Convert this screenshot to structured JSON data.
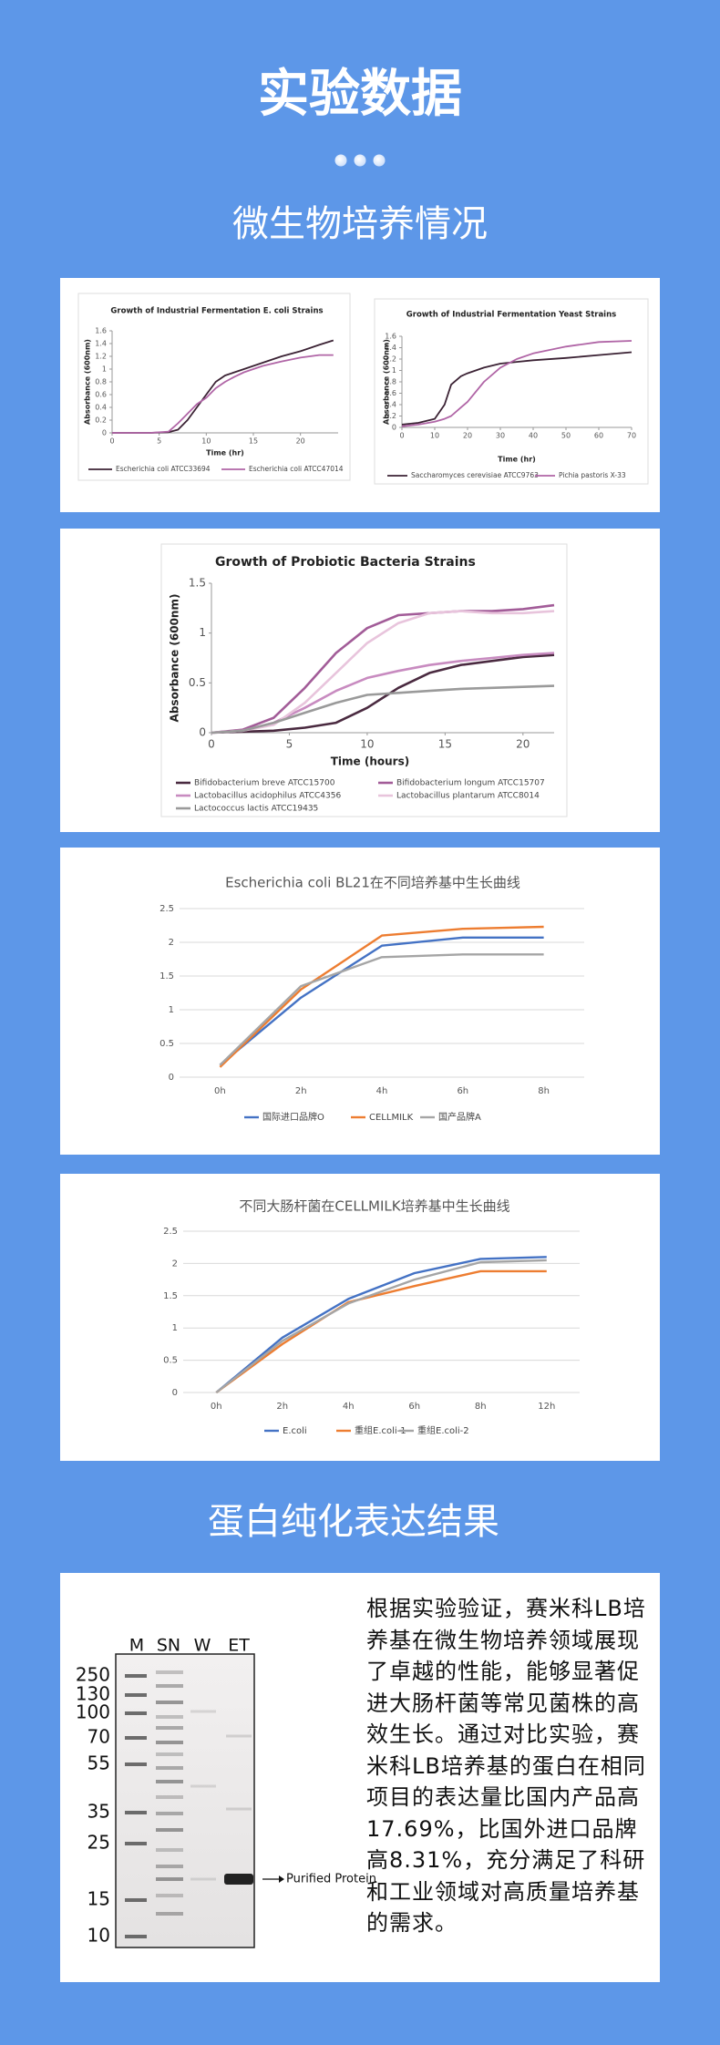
{
  "page": {
    "title": "实验数据",
    "section_1": "微生物培养情况",
    "section_2": "蛋白纯化表达结果",
    "paragraph": "根据实验验证，赛米科LB培养基在微生物培养领域展现了卓越的性能，能够显著促进大肠杆菌等常见菌株的高效生长。通过对比实验，赛米科LB培养基的蛋白在相同项目的表达量比国内产品高17.69%，比国外进口品牌高8.31%，充分满足了科研和工业领域对高质量培养基的需求。"
  },
  "chart_data": [
    {
      "type": "line",
      "title": "Growth of Industrial Fermentation E. coli Strains",
      "x_label": "Time (hr)",
      "y_label": "Absorbance (600nm)",
      "x": [
        0,
        2,
        4,
        6,
        7,
        8,
        9,
        10,
        11,
        12,
        13,
        14,
        16,
        18,
        20,
        22,
        23.5
      ],
      "series": [
        {
          "name": "Escherichia coli ATCC33694",
          "color": "#3b2234",
          "values": [
            0,
            0,
            0,
            0.01,
            0.05,
            0.2,
            0.4,
            0.6,
            0.8,
            0.9,
            0.95,
            1.0,
            1.1,
            1.2,
            1.28,
            1.38,
            1.45
          ]
        },
        {
          "name": "Escherichia coli ATCC47014",
          "color": "#b065a6",
          "values": [
            0,
            0,
            0,
            0.02,
            0.15,
            0.3,
            0.45,
            0.55,
            0.7,
            0.8,
            0.88,
            0.95,
            1.05,
            1.12,
            1.18,
            1.22,
            1.22
          ]
        }
      ],
      "xlim": [
        0,
        24
      ],
      "xticks": [
        0,
        5,
        10,
        15,
        20
      ],
      "ylim": [
        0,
        1.6
      ],
      "yticks": [
        0,
        0.2,
        0.4,
        0.6,
        0.8,
        1,
        1.2,
        1.4,
        1.6
      ],
      "grid": false
    },
    {
      "type": "line",
      "title": "Growth of Industrial Fermentation Yeast Strains",
      "x_label": "Time (hr)",
      "y_label": "Absorbance (600nm)",
      "x": [
        0,
        5,
        10,
        13,
        15,
        18,
        20,
        25,
        30,
        35,
        40,
        50,
        60,
        70
      ],
      "series": [
        {
          "name": "Saccharomyces cerevisiae ATCC9763",
          "color": "#3b2234",
          "values": [
            0.05,
            0.08,
            0.15,
            0.4,
            0.75,
            0.9,
            0.95,
            1.05,
            1.12,
            1.15,
            1.18,
            1.22,
            1.27,
            1.32
          ]
        },
        {
          "name": "Pichia pastoris X-33",
          "color": "#b065a6",
          "values": [
            0.02,
            0.05,
            0.1,
            0.15,
            0.2,
            0.35,
            0.45,
            0.8,
            1.05,
            1.2,
            1.3,
            1.42,
            1.5,
            1.52
          ]
        }
      ],
      "xlim": [
        0,
        70
      ],
      "xticks": [
        0,
        10,
        20,
        30,
        40,
        50,
        60,
        70
      ],
      "ylim": [
        0,
        1.6
      ],
      "yticks": [
        0,
        0.2,
        0.4,
        0.6,
        0.8,
        1,
        1.2,
        1.4,
        1.6
      ],
      "grid": false
    },
    {
      "type": "line",
      "title": "Growth of Probiotic Bacteria Strains",
      "x_label": "Time (hours)",
      "y_label": "Absorbance (600nm)",
      "x": [
        0,
        2,
        4,
        6,
        8,
        10,
        12,
        14,
        16,
        18,
        20,
        22
      ],
      "series": [
        {
          "name": "Bifidobacterium breve ATCC15700",
          "color": "#4a2a40",
          "values": [
            0,
            0.01,
            0.02,
            0.05,
            0.1,
            0.25,
            0.45,
            0.6,
            0.68,
            0.72,
            0.76,
            0.78
          ]
        },
        {
          "name": "Bifidobacterium longum ATCC15707",
          "color": "#a25c98",
          "values": [
            0,
            0.03,
            0.15,
            0.45,
            0.8,
            1.05,
            1.18,
            1.2,
            1.22,
            1.22,
            1.24,
            1.28
          ]
        },
        {
          "name": "Lactobacillus acidophilus ATCC4356",
          "color": "#c88bc0",
          "values": [
            0,
            0.02,
            0.1,
            0.25,
            0.42,
            0.55,
            0.62,
            0.68,
            0.72,
            0.75,
            0.78,
            0.8
          ]
        },
        {
          "name": "Lactobacillus plantarum ATCC8014",
          "color": "#e8c4dc",
          "values": [
            0,
            0.02,
            0.08,
            0.3,
            0.6,
            0.9,
            1.1,
            1.2,
            1.22,
            1.2,
            1.2,
            1.22
          ]
        },
        {
          "name": "Lactococcus lactis ATCC19435",
          "color": "#9a9a9a",
          "values": [
            0,
            0.02,
            0.1,
            0.2,
            0.3,
            0.38,
            0.4,
            0.42,
            0.44,
            0.45,
            0.46,
            0.47
          ]
        }
      ],
      "xlim": [
        0,
        22
      ],
      "xticks": [
        0,
        5,
        10,
        15,
        20
      ],
      "ylim": [
        0,
        1.5
      ],
      "yticks": [
        0,
        0.5,
        1,
        1.5
      ],
      "grid": false
    },
    {
      "type": "line",
      "title": "Escherichia coli BL21在不同培养基中生长曲线",
      "categories": [
        "0h",
        "2h",
        "4h",
        "6h",
        "8h"
      ],
      "series": [
        {
          "name": "国际进口品牌O",
          "color": "#4472c4",
          "values": [
            0.18,
            1.18,
            1.95,
            2.07,
            2.07
          ]
        },
        {
          "name": "CELLMILK",
          "color": "#ed7d31",
          "values": [
            0.15,
            1.3,
            2.1,
            2.2,
            2.23
          ]
        },
        {
          "name": "国产品牌A",
          "color": "#a5a5a5",
          "values": [
            0.18,
            1.35,
            1.78,
            1.82,
            1.82
          ]
        }
      ],
      "ylim": [
        0,
        2.5
      ],
      "yticks": [
        0,
        0.5,
        1,
        1.5,
        2,
        2.5
      ],
      "grid": true
    },
    {
      "type": "line",
      "title": "不同大肠杆菌在CELLMILK培养基中生长曲线",
      "categories": [
        "0h",
        "2h",
        "4h",
        "6h",
        "8h",
        "12h"
      ],
      "series": [
        {
          "name": "E.coli",
          "color": "#4472c4",
          "values": [
            0,
            0.85,
            1.45,
            1.85,
            2.07,
            2.1
          ]
        },
        {
          "name": "重组E.coli-1",
          "color": "#ed7d31",
          "values": [
            0,
            0.75,
            1.4,
            1.65,
            1.88,
            1.88
          ]
        },
        {
          "name": "重组E.coli-2",
          "color": "#a5a5a5",
          "values": [
            0,
            0.8,
            1.38,
            1.75,
            2.02,
            2.05
          ]
        }
      ],
      "ylim": [
        0,
        2.5
      ],
      "yticks": [
        0,
        0.5,
        1,
        1.5,
        2,
        2.5
      ],
      "grid": true
    }
  ],
  "gel": {
    "lanes": [
      "M",
      "SN",
      "W",
      "ET"
    ],
    "markers": [
      250,
      130,
      100,
      70,
      55,
      35,
      25,
      15,
      10
    ],
    "annotation": "Purified Protein"
  }
}
